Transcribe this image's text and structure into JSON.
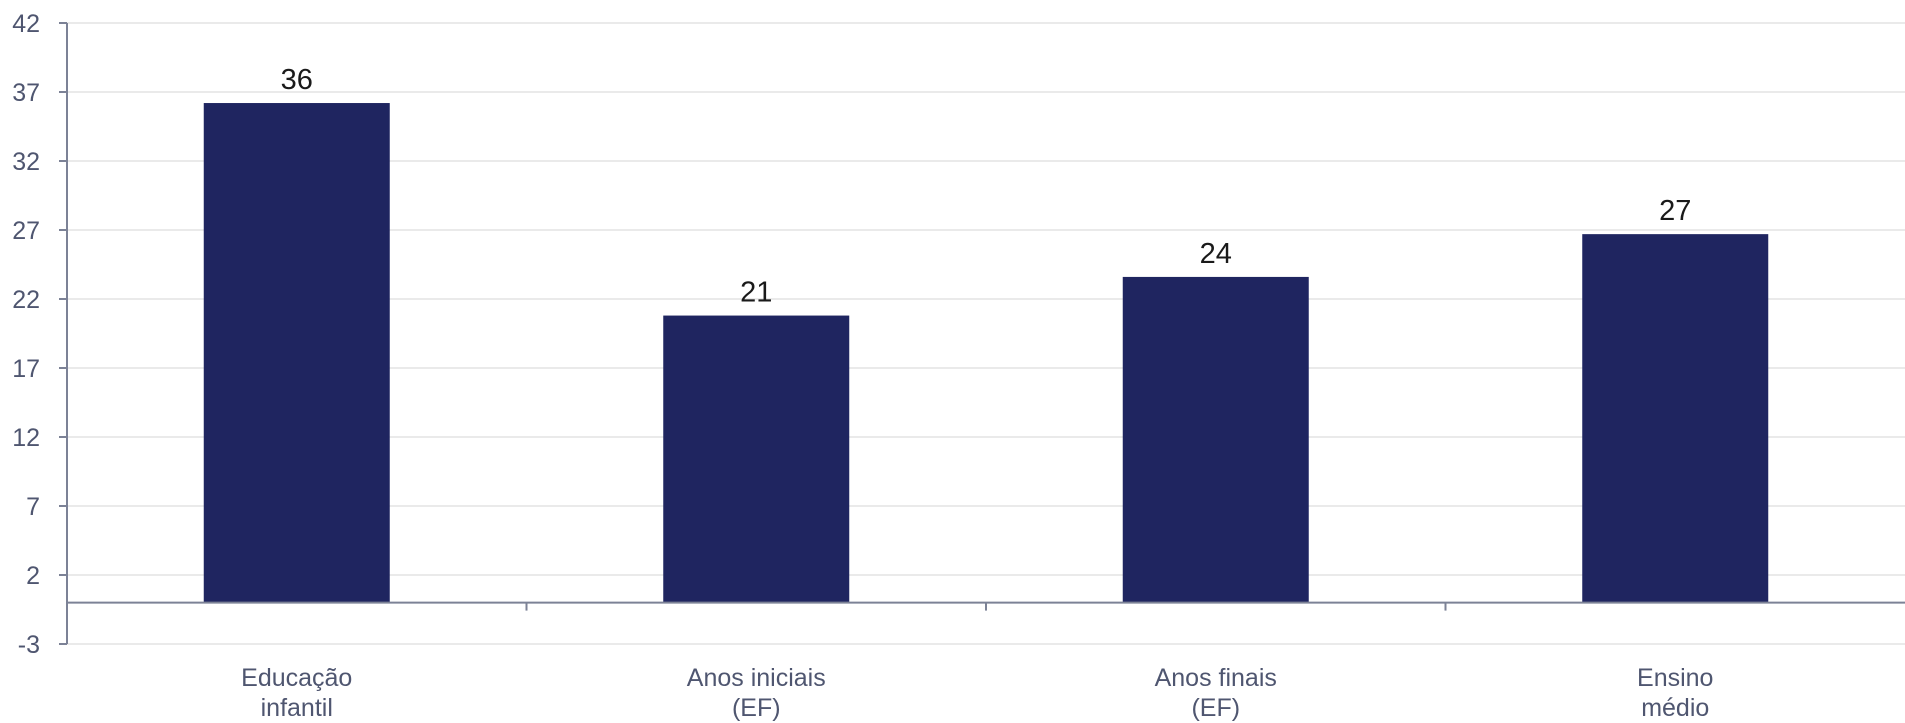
{
  "chart_data": {
    "type": "bar",
    "categories": [
      [
        "Educação",
        "infantil"
      ],
      [
        "Anos iniciais",
        "(EF)"
      ],
      [
        "Anos finais",
        "(EF)"
      ],
      [
        "Ensino",
        "médio"
      ]
    ],
    "values": [
      36.2,
      20.8,
      23.6,
      26.7
    ],
    "data_labels": [
      "36",
      "21",
      "24",
      "27"
    ],
    "title": "",
    "xlabel": "",
    "ylabel": "",
    "ylim": [
      -3,
      42
    ],
    "yticks": [
      -3,
      2,
      7,
      12,
      17,
      22,
      27,
      32,
      37,
      42
    ],
    "grid": true,
    "legend": "none",
    "colors": {
      "bar": "#1f2560",
      "grid": "#e3e3e3",
      "axis": "#7c8296",
      "tick_text": "#4f5670",
      "data_label_text": "#1a1a1a"
    }
  }
}
